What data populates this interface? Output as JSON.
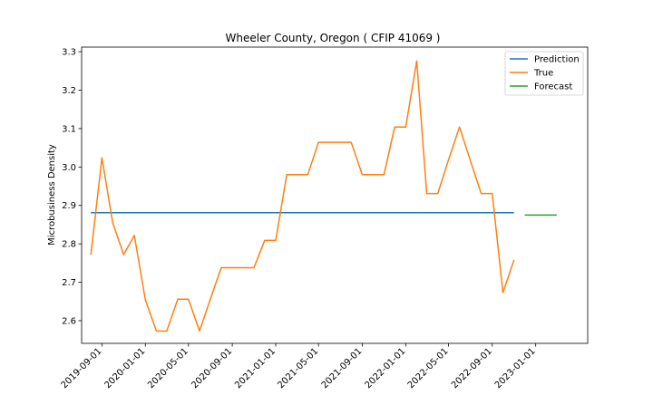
{
  "chart_data": {
    "type": "line",
    "title": "Wheeler County, Oregon ( CFIP 41069 )",
    "xlabel": "",
    "ylabel": "Microbusiness Density",
    "xlim": [
      "2019-07-06",
      "2023-05-27"
    ],
    "ylim": [
      2.541,
      3.312
    ],
    "grid": false,
    "legend_position": "top-right",
    "x_ticks": [
      "2019-09-01",
      "2020-01-01",
      "2020-05-01",
      "2020-09-01",
      "2021-01-01",
      "2021-05-01",
      "2021-09-01",
      "2022-01-01",
      "2022-05-01",
      "2022-09-01",
      "2023-01-01"
    ],
    "y_ticks": [
      "2.6",
      "2.7",
      "2.8",
      "2.9",
      "3.0",
      "3.1",
      "3.2",
      "3.3"
    ],
    "series": [
      {
        "name": "Prediction",
        "color": "#1f77b4",
        "points": [
          [
            "2019-08-01",
            2.881
          ],
          [
            "2022-11-01",
            2.881
          ]
        ]
      },
      {
        "name": "True",
        "color": "#ff7f0e",
        "points": [
          [
            "2019-08-01",
            2.772
          ],
          [
            "2019-09-01",
            3.024
          ],
          [
            "2019-10-01",
            2.856
          ],
          [
            "2019-11-01",
            2.772
          ],
          [
            "2019-12-01",
            2.822
          ],
          [
            "2020-01-01",
            2.654
          ],
          [
            "2020-02-01",
            2.573
          ],
          [
            "2020-03-01",
            2.573
          ],
          [
            "2020-04-01",
            2.656
          ],
          [
            "2020-05-01",
            2.656
          ],
          [
            "2020-06-01",
            2.573
          ],
          [
            "2020-07-01",
            2.655
          ],
          [
            "2020-08-01",
            2.738
          ],
          [
            "2020-09-01",
            2.738
          ],
          [
            "2020-10-01",
            2.738
          ],
          [
            "2020-11-01",
            2.738
          ],
          [
            "2020-12-01",
            2.809
          ],
          [
            "2021-01-01",
            2.809
          ],
          [
            "2021-02-01",
            2.98
          ],
          [
            "2021-03-01",
            2.98
          ],
          [
            "2021-04-01",
            2.98
          ],
          [
            "2021-05-01",
            3.064
          ],
          [
            "2021-06-01",
            3.064
          ],
          [
            "2021-07-01",
            3.064
          ],
          [
            "2021-08-01",
            3.064
          ],
          [
            "2021-09-01",
            2.98
          ],
          [
            "2021-10-01",
            2.98
          ],
          [
            "2021-11-01",
            2.98
          ],
          [
            "2021-12-01",
            3.104
          ],
          [
            "2022-01-01",
            3.104
          ],
          [
            "2022-02-01",
            3.276
          ],
          [
            "2022-03-01",
            2.931
          ],
          [
            "2022-04-01",
            2.931
          ],
          [
            "2022-05-01",
            3.018
          ],
          [
            "2022-06-01",
            3.104
          ],
          [
            "2022-07-01",
            3.018
          ],
          [
            "2022-08-01",
            2.931
          ],
          [
            "2022-09-01",
            2.931
          ],
          [
            "2022-10-01",
            2.673
          ],
          [
            "2022-11-01",
            2.758
          ]
        ]
      },
      {
        "name": "Forecast",
        "color": "#2ca02c",
        "points": [
          [
            "2022-12-01",
            2.875
          ],
          [
            "2023-01-01",
            2.875
          ],
          [
            "2023-02-01",
            2.875
          ],
          [
            "2023-03-01",
            2.875
          ]
        ]
      }
    ]
  }
}
